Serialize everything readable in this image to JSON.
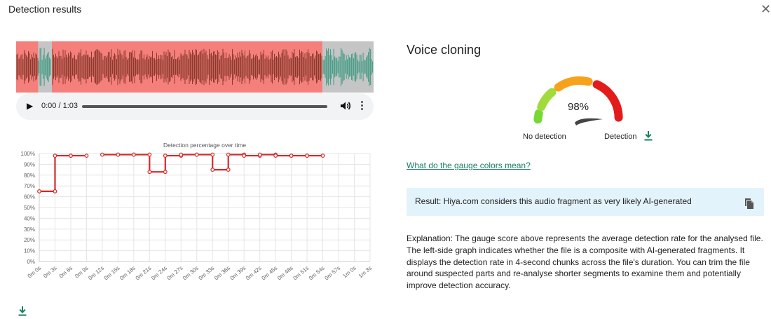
{
  "dialog": {
    "title": "Detection results",
    "close_icon": "close-icon"
  },
  "player": {
    "time_display": "0:00 / 1:03",
    "progress": 0.0
  },
  "waveform": {
    "duration_s": 63,
    "segments": [
      {
        "start_s": 0,
        "end_s": 3.9,
        "label": "ai"
      },
      {
        "start_s": 3.9,
        "end_s": 6.3,
        "label": "human"
      },
      {
        "start_s": 6.3,
        "end_s": 54,
        "label": "ai"
      },
      {
        "start_s": 54,
        "end_s": 63,
        "label": "human"
      }
    ],
    "colors": {
      "ai_bg": "#f47f7b",
      "ai_wave": "#8a3a2c",
      "human_bg": "#c5c5c5",
      "human_wave": "#3f9a82"
    }
  },
  "chart_data": {
    "type": "line",
    "title": "Detection percentage over time",
    "categories": [
      "0m 0s",
      "0m 3s",
      "0m 6s",
      "0m 9s",
      "0m 12s",
      "0m 15s",
      "0m 18s",
      "0m 21s",
      "0m 24s",
      "0m 27s",
      "0m 30s",
      "0m 33s",
      "0m 36s",
      "0m 39s",
      "0m 42s",
      "0m 45s",
      "0m 48s",
      "0m 51s",
      "0m 54s",
      "0m 57s",
      "1m 0s",
      "1m 3s"
    ],
    "y_ticks": [
      "0%",
      "10%",
      "20%",
      "30%",
      "40%",
      "50%",
      "60%",
      "70%",
      "80%",
      "90%",
      "100%"
    ],
    "ylim": [
      0,
      100
    ],
    "step_segments": [
      {
        "from": 0,
        "to": 1,
        "value": 65
      },
      {
        "from": 1,
        "to": 2,
        "value": 98
      },
      {
        "from": 2,
        "to": 3,
        "value": 98
      },
      {
        "from": 4,
        "to": 5,
        "value": 99
      },
      {
        "from": 5,
        "to": 6,
        "value": 99
      },
      {
        "from": 6,
        "to": 7,
        "value": 99
      },
      {
        "from": 7,
        "to": 8,
        "value": 83
      },
      {
        "from": 8,
        "to": 9,
        "value": 98
      },
      {
        "from": 9,
        "to": 10,
        "value": 99
      },
      {
        "from": 10,
        "to": 11,
        "value": 99
      },
      {
        "from": 11,
        "to": 12,
        "value": 85
      },
      {
        "from": 12,
        "to": 13,
        "value": 99
      },
      {
        "from": 13,
        "to": 14,
        "value": 98
      },
      {
        "from": 14,
        "to": 15,
        "value": 99
      },
      {
        "from": 15,
        "to": 16,
        "value": 98
      },
      {
        "from": 16,
        "to": 17,
        "value": 98
      },
      {
        "from": 17,
        "to": 18,
        "value": 98
      }
    ],
    "line_color": "#d42a2a",
    "grid": true
  },
  "gauge": {
    "title": "Voice cloning",
    "value": 98,
    "value_text": "98%",
    "label_min": "No detection",
    "label_max": "Detection",
    "colors": [
      "#77d833",
      "#f7a21b",
      "#e31b1b"
    ]
  },
  "links": {
    "gauge_help": "What do the gauge colors mean?"
  },
  "result": {
    "text": "Result: Hiya.com considers this audio fragment as very likely AI-generated"
  },
  "explanation": {
    "lines": [
      "Explanation: The gauge score above represents the average detection rate for the analysed file.",
      "The left-side graph indicates whether the file is a composite with AI-generated fragments. It",
      "displays the detection rate in 4-second chunks across the file's duration. You can trim the file",
      "around suspected parts and re-analyse shorter segments to examine them and potentially",
      "improve detection accuracy."
    ]
  },
  "accent_color": "#16805f"
}
